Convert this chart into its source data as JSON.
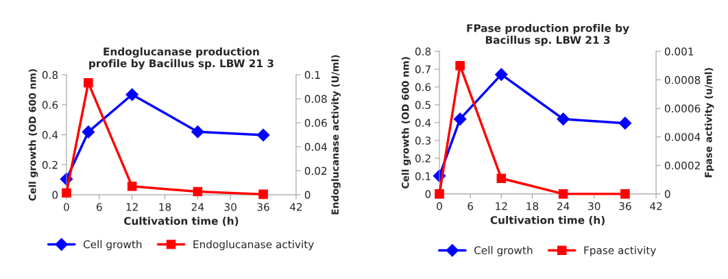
{
  "chart_data": [
    {
      "type": "line",
      "title": "Endoglucanase production profile by Bacillus sp. LBW 21 3",
      "xlabel": "Cultivation time (h)",
      "ylabel": "Cell growth (OD 600 nm)",
      "y2label": "Endoglucanase activity (U/ml)",
      "x": [
        0,
        4,
        12,
        24,
        36
      ],
      "xlim": [
        0,
        42
      ],
      "xticks": [
        0,
        6,
        12,
        18,
        24,
        30,
        36,
        42
      ],
      "ylim": [
        0,
        0.8
      ],
      "yticks": [
        0,
        0.2,
        0.4,
        0.6,
        0.8
      ],
      "y2lim": [
        0,
        0.1
      ],
      "y2ticks": [
        0,
        0.02,
        0.04,
        0.06,
        0.08,
        0.1
      ],
      "grid": false,
      "legend": "bottom",
      "series": [
        {
          "name": "Cell growth",
          "color": "#0000ff",
          "marker": "diamond",
          "values": [
            0.104,
            0.419,
            0.668,
            0.42,
            0.398
          ]
        },
        {
          "name": "Endoglucanase activity",
          "color": "#ff0000",
          "marker": "square",
          "axis": "y2",
          "values": [
            0.0015,
            0.0933,
            0.007,
            0.0026,
            0.0004
          ]
        }
      ]
    },
    {
      "type": "line",
      "title": "FPase production profile by Bacillus sp. LBW 21 3",
      "xlabel": "Cultivation time (h)",
      "ylabel": "Cell growth (OD 600 nm)",
      "y2label": "Fpase activity (u/ml)",
      "x": [
        0,
        4,
        12,
        24,
        36
      ],
      "xlim": [
        0,
        42
      ],
      "xticks": [
        0,
        6,
        12,
        18,
        24,
        30,
        36,
        42
      ],
      "ylim": [
        0,
        0.8
      ],
      "yticks": [
        0,
        0.1,
        0.2,
        0.3,
        0.4,
        0.5,
        0.6,
        0.7,
        0.8
      ],
      "y2lim": [
        0,
        0.001
      ],
      "y2ticks": [
        0,
        0.0002,
        0.0004,
        0.0006,
        0.0008,
        0.001
      ],
      "grid": false,
      "legend": "bottom",
      "series": [
        {
          "name": "Cell growth",
          "color": "#0000ff",
          "marker": "diamond",
          "values": [
            0.101,
            0.42,
            0.67,
            0.42,
            0.397
          ]
        },
        {
          "name": "Fpase activity",
          "color": "#ff0000",
          "marker": "square",
          "axis": "y2",
          "values": [
            0,
            0.0009,
            0.000109,
            0,
            0
          ]
        }
      ]
    }
  ]
}
